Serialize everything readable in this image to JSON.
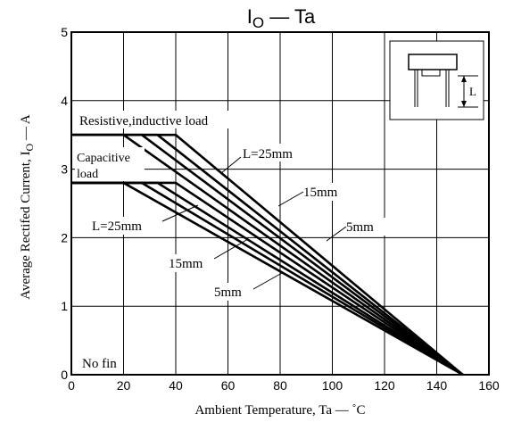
{
  "chart_data": {
    "type": "line",
    "title_main": "I",
    "title_sub": "O",
    "title_rest": " — Ta",
    "xlabel": "Ambient Temperature, Ta  —  ˚C",
    "ylabel_pre": "Average Rectifed Current, I",
    "ylabel_sub": "O",
    "ylabel_post": "  —  A",
    "xlim": [
      0,
      160
    ],
    "ylim": [
      0,
      5
    ],
    "xticks": [
      0,
      20,
      40,
      60,
      80,
      100,
      120,
      140,
      160
    ],
    "yticks": [
      0,
      1,
      2,
      3,
      4,
      5
    ],
    "grid": true,
    "series": [
      {
        "x": [
          0,
          20,
          150
        ],
        "y": [
          3.5,
          3.5,
          0
        ]
      },
      {
        "x": [
          0,
          27,
          150
        ],
        "y": [
          3.5,
          3.5,
          0
        ]
      },
      {
        "x": [
          0,
          33,
          150
        ],
        "y": [
          3.5,
          3.5,
          0
        ]
      },
      {
        "x": [
          0,
          40,
          150
        ],
        "y": [
          3.5,
          3.5,
          0
        ]
      },
      {
        "x": [
          0,
          20,
          150
        ],
        "y": [
          2.8,
          2.8,
          0
        ]
      },
      {
        "x": [
          0,
          27,
          150
        ],
        "y": [
          2.8,
          2.8,
          0
        ]
      },
      {
        "x": [
          0,
          33,
          150
        ],
        "y": [
          2.8,
          2.8,
          0
        ]
      },
      {
        "x": [
          0,
          40,
          150
        ],
        "y": [
          2.8,
          2.8,
          0
        ]
      }
    ],
    "annotations": {
      "resistive": "Resistive,inductive load",
      "capacitive_1": "Capacitive",
      "capacitive_2": "load",
      "res_l25": "L=25mm",
      "res_15": "15mm",
      "res_5": "5mm",
      "cap_l25": "L=25mm",
      "cap_15": "15mm",
      "cap_5": "5mm",
      "no_fin": "No fin",
      "inset_L": "L"
    }
  }
}
